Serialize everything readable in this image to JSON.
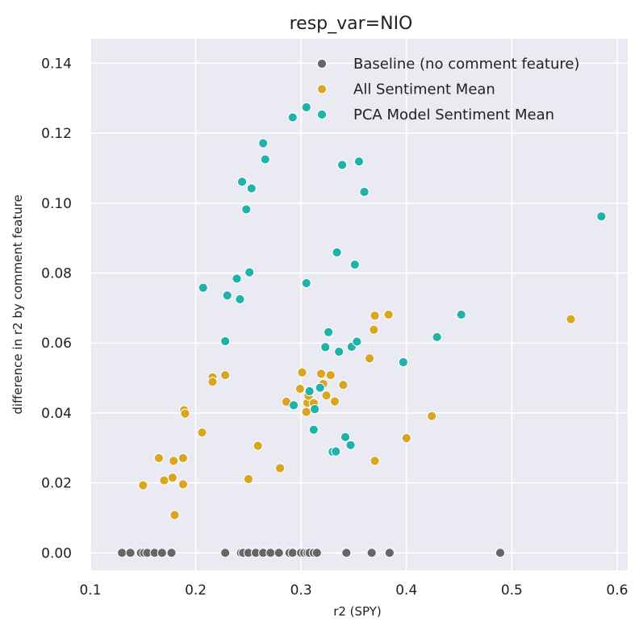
{
  "chart_data": {
    "type": "scatter",
    "title": "resp_var=NIO",
    "xlabel": "r2 (SPY)",
    "ylabel": "difference in r2 by comment feature",
    "xlim": [
      0.1,
      0.61
    ],
    "ylim": [
      -0.005,
      0.147
    ],
    "xticks": [
      "0.1",
      "0.2",
      "0.3",
      "0.4",
      "0.5",
      "0.6"
    ],
    "xtick_values": [
      0.1,
      0.2,
      0.3,
      0.4,
      0.5,
      0.6
    ],
    "yticks": [
      "0.00",
      "0.02",
      "0.04",
      "0.06",
      "0.08",
      "0.10",
      "0.12",
      "0.14"
    ],
    "ytick_values": [
      0.0,
      0.02,
      0.04,
      0.06,
      0.08,
      0.1,
      0.12,
      0.14
    ],
    "grid": true,
    "legend_position": "top-right",
    "background": "#eaeaf2",
    "series": [
      {
        "name": "Baseline (no comment feature)",
        "color": "#666666",
        "points": [
          [
            0.13,
            0
          ],
          [
            0.138,
            0
          ],
          [
            0.148,
            0
          ],
          [
            0.151,
            0
          ],
          [
            0.154,
            0
          ],
          [
            0.161,
            0
          ],
          [
            0.168,
            0
          ],
          [
            0.177,
            0
          ],
          [
            0.228,
            0
          ],
          [
            0.243,
            0
          ],
          [
            0.245,
            0
          ],
          [
            0.25,
            0
          ],
          [
            0.257,
            0
          ],
          [
            0.264,
            0
          ],
          [
            0.271,
            0
          ],
          [
            0.279,
            0
          ],
          [
            0.289,
            0
          ],
          [
            0.292,
            0
          ],
          [
            0.3,
            0
          ],
          [
            0.303,
            0
          ],
          [
            0.306,
            0
          ],
          [
            0.308,
            0
          ],
          [
            0.312,
            0
          ],
          [
            0.315,
            0
          ],
          [
            0.343,
            0
          ],
          [
            0.367,
            0
          ],
          [
            0.384,
            0
          ],
          [
            0.489,
            0
          ]
        ]
      },
      {
        "name": "All Sentiment Mean",
        "color": "#daa520",
        "points": [
          [
            0.15,
            0.0193
          ],
          [
            0.165,
            0.0271
          ],
          [
            0.17,
            0.0207
          ],
          [
            0.178,
            0.0215
          ],
          [
            0.179,
            0.0263
          ],
          [
            0.18,
            0.0108
          ],
          [
            0.188,
            0.0271
          ],
          [
            0.188,
            0.0196
          ],
          [
            0.189,
            0.0408
          ],
          [
            0.19,
            0.0398
          ],
          [
            0.206,
            0.0344
          ],
          [
            0.216,
            0.0502
          ],
          [
            0.216,
            0.0489
          ],
          [
            0.228,
            0.0508
          ],
          [
            0.25,
            0.0211
          ],
          [
            0.259,
            0.0306
          ],
          [
            0.28,
            0.0242
          ],
          [
            0.286,
            0.0432
          ],
          [
            0.299,
            0.0469
          ],
          [
            0.301,
            0.0516
          ],
          [
            0.305,
            0.0403
          ],
          [
            0.306,
            0.0429
          ],
          [
            0.307,
            0.0449
          ],
          [
            0.312,
            0.0428
          ],
          [
            0.319,
            0.0512
          ],
          [
            0.321,
            0.0483
          ],
          [
            0.324,
            0.045
          ],
          [
            0.328,
            0.0508
          ],
          [
            0.332,
            0.0433
          ],
          [
            0.34,
            0.048
          ],
          [
            0.365,
            0.0556
          ],
          [
            0.369,
            0.0638
          ],
          [
            0.37,
            0.0678
          ],
          [
            0.37,
            0.0263
          ],
          [
            0.383,
            0.0681
          ],
          [
            0.4,
            0.0328
          ],
          [
            0.424,
            0.0391
          ],
          [
            0.556,
            0.0668
          ]
        ]
      },
      {
        "name": "PCA Model Sentiment Mean",
        "color": "#20b2aa",
        "points": [
          [
            0.207,
            0.0758
          ],
          [
            0.228,
            0.0605
          ],
          [
            0.23,
            0.0736
          ],
          [
            0.239,
            0.0784
          ],
          [
            0.242,
            0.0725
          ],
          [
            0.244,
            0.1061
          ],
          [
            0.248,
            0.0982
          ],
          [
            0.251,
            0.0802
          ],
          [
            0.253,
            0.1042
          ],
          [
            0.264,
            0.1171
          ],
          [
            0.266,
            0.1125
          ],
          [
            0.292,
            0.1247
          ],
          [
            0.292,
            0.1245
          ],
          [
            0.293,
            0.0422
          ],
          [
            0.305,
            0.1274
          ],
          [
            0.305,
            0.0771
          ],
          [
            0.308,
            0.0462
          ],
          [
            0.312,
            0.0352
          ],
          [
            0.313,
            0.0411
          ],
          [
            0.318,
            0.0472
          ],
          [
            0.323,
            0.0588
          ],
          [
            0.326,
            0.0631
          ],
          [
            0.33,
            0.0289
          ],
          [
            0.333,
            0.029
          ],
          [
            0.334,
            0.0859
          ],
          [
            0.336,
            0.0575
          ],
          [
            0.339,
            0.1109
          ],
          [
            0.342,
            0.0331
          ],
          [
            0.347,
            0.0308
          ],
          [
            0.348,
            0.0589
          ],
          [
            0.351,
            0.0824
          ],
          [
            0.353,
            0.0604
          ],
          [
            0.355,
            0.1119
          ],
          [
            0.36,
            0.1032
          ],
          [
            0.397,
            0.0545
          ],
          [
            0.429,
            0.0617
          ],
          [
            0.452,
            0.0681
          ],
          [
            0.585,
            0.0962
          ]
        ]
      }
    ]
  }
}
